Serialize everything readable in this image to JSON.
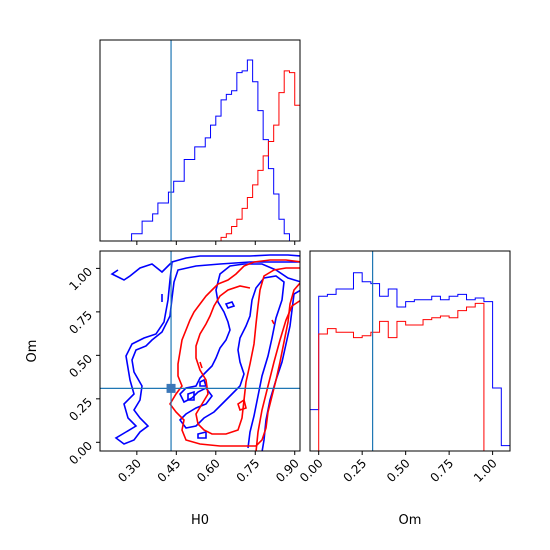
{
  "chart_data": [
    {
      "type": "histogram",
      "panel": "H0 marginal",
      "x_range": [
        0.16,
        0.92
      ],
      "truth": 0.43,
      "bins": [
        0.16,
        0.18,
        0.2,
        0.22,
        0.24,
        0.26,
        0.28,
        0.3,
        0.32,
        0.34,
        0.36,
        0.38,
        0.4,
        0.42,
        0.44,
        0.46,
        0.48,
        0.5,
        0.52,
        0.54,
        0.56,
        0.58,
        0.6,
        0.62,
        0.64,
        0.66,
        0.68,
        0.7,
        0.72,
        0.74,
        0.76,
        0.78,
        0.8,
        0.82,
        0.84,
        0.86,
        0.88,
        0.9,
        0.92
      ],
      "series": [
        {
          "color": "#0000ff",
          "values": [
            0,
            0,
            0,
            0,
            0,
            0,
            0.04,
            0.04,
            0.11,
            0.11,
            0.15,
            0.21,
            0.21,
            0.27,
            0.33,
            0.33,
            0.45,
            0.45,
            0.52,
            0.52,
            0.57,
            0.64,
            0.69,
            0.78,
            0.81,
            0.83,
            0.93,
            0.94,
            1.0,
            0.88,
            0.72,
            0.56,
            0.4,
            0.26,
            0.12,
            0.04,
            0.0,
            0.0
          ]
        },
        {
          "color": "#ff0000",
          "values": [
            0,
            0,
            0,
            0,
            0,
            0,
            0,
            0,
            0,
            0,
            0,
            0,
            0,
            0,
            0,
            0,
            0,
            0,
            0,
            0,
            0,
            0,
            0,
            0.02,
            0.04,
            0.08,
            0.12,
            0.18,
            0.24,
            0.31,
            0.39,
            0.47,
            0.55,
            0.64,
            0.82,
            0.94,
            0.93,
            0.75
          ]
        }
      ]
    },
    {
      "type": "contour",
      "panel": "H0 vs Om",
      "x_range": [
        0.16,
        0.92
      ],
      "y_range": [
        -0.05,
        1.1
      ],
      "truth": [
        0.43,
        0.31
      ],
      "series": [
        {
          "color": "#0000ff"
        },
        {
          "color": "#ff0000"
        }
      ]
    },
    {
      "type": "histogram",
      "panel": "Om marginal",
      "x_range": [
        -0.05,
        1.1
      ],
      "truth": 0.31,
      "bins": [
        -0.05,
        0.0,
        0.05,
        0.1,
        0.15,
        0.2,
        0.25,
        0.3,
        0.35,
        0.4,
        0.45,
        0.5,
        0.55,
        0.6,
        0.65,
        0.7,
        0.75,
        0.8,
        0.85,
        0.9,
        0.95,
        1.0,
        1.05,
        1.1
      ],
      "series": [
        {
          "color": "#0000ff",
          "values": [
            0.23,
            0.86,
            0.87,
            0.9,
            0.9,
            0.99,
            0.94,
            0.93,
            0.86,
            0.9,
            0.8,
            0.83,
            0.84,
            0.84,
            0.86,
            0.84,
            0.86,
            0.87,
            0.84,
            0.85,
            0.83,
            0.35,
            0.03
          ]
        },
        {
          "color": "#ff0000",
          "values": [
            0,
            0.65,
            0.68,
            0.66,
            0.66,
            0.63,
            0.64,
            0.66,
            0.72,
            0.63,
            0.72,
            0.7,
            0.7,
            0.73,
            0.74,
            0.75,
            0.74,
            0.78,
            0.8,
            0.82,
            0.0,
            0.0,
            0.0
          ]
        }
      ]
    }
  ],
  "xlabels": {
    "h0": "H0",
    "om": "Om"
  },
  "ylabels": {
    "om": "Om"
  },
  "ticks": {
    "h0": [
      "0.30",
      "0.45",
      "0.60",
      "0.75",
      "0.90"
    ],
    "om_y": [
      "0.00",
      "0.25",
      "0.50",
      "0.75",
      "1.00"
    ],
    "om_x": [
      "0.00",
      "0.25",
      "0.50",
      "0.75",
      "1.00"
    ]
  },
  "colors": {
    "series1": "#0000ff",
    "series2": "#ff0000",
    "truth": "#1f77b4"
  }
}
